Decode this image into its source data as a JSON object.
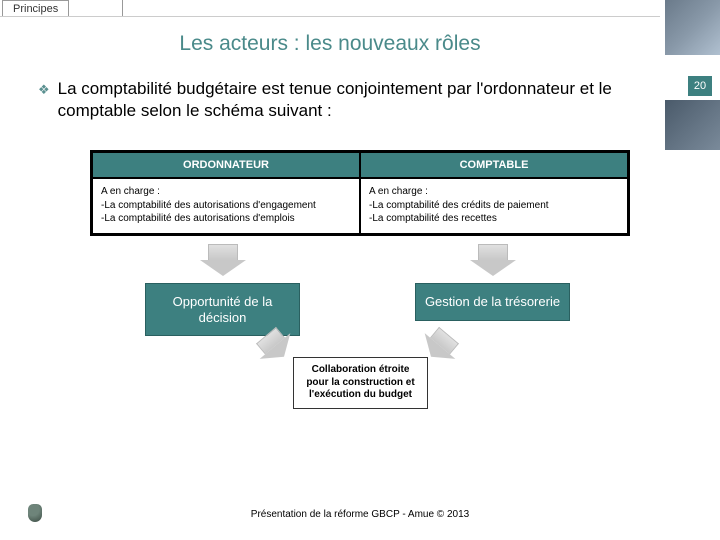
{
  "tab_label": "Principes",
  "title": "Les acteurs : les nouveaux rôles",
  "page_number": "20",
  "bullet_text": "La comptabilité budgétaire est tenue conjointement par l'ordonnateur et le comptable selon le schéma suivant :",
  "table": {
    "headers": [
      "ORDONNATEUR",
      "COMPTABLE"
    ],
    "left_title": "A en charge :",
    "left_line1": "-La comptabilité des autorisations d'engagement",
    "left_line2": "-La comptabilité des autorisations d'emplois",
    "right_title": "A en charge :",
    "right_line1": "-La comptabilité des crédits de paiement",
    "right_line2": "-La comptabilité des recettes"
  },
  "box1": "Opportunité de la décision",
  "box2": "Gestion de la trésorerie",
  "collab": "Collaboration étroite pour la construction et l'exécution du budget",
  "footer": "Présentation de la réforme GBCP - Amue © 2013",
  "colors": {
    "teal": "#3d8080",
    "title_color": "#4a8a8a",
    "arrow_fill": "#c8c8c8",
    "background": "#ffffff"
  }
}
